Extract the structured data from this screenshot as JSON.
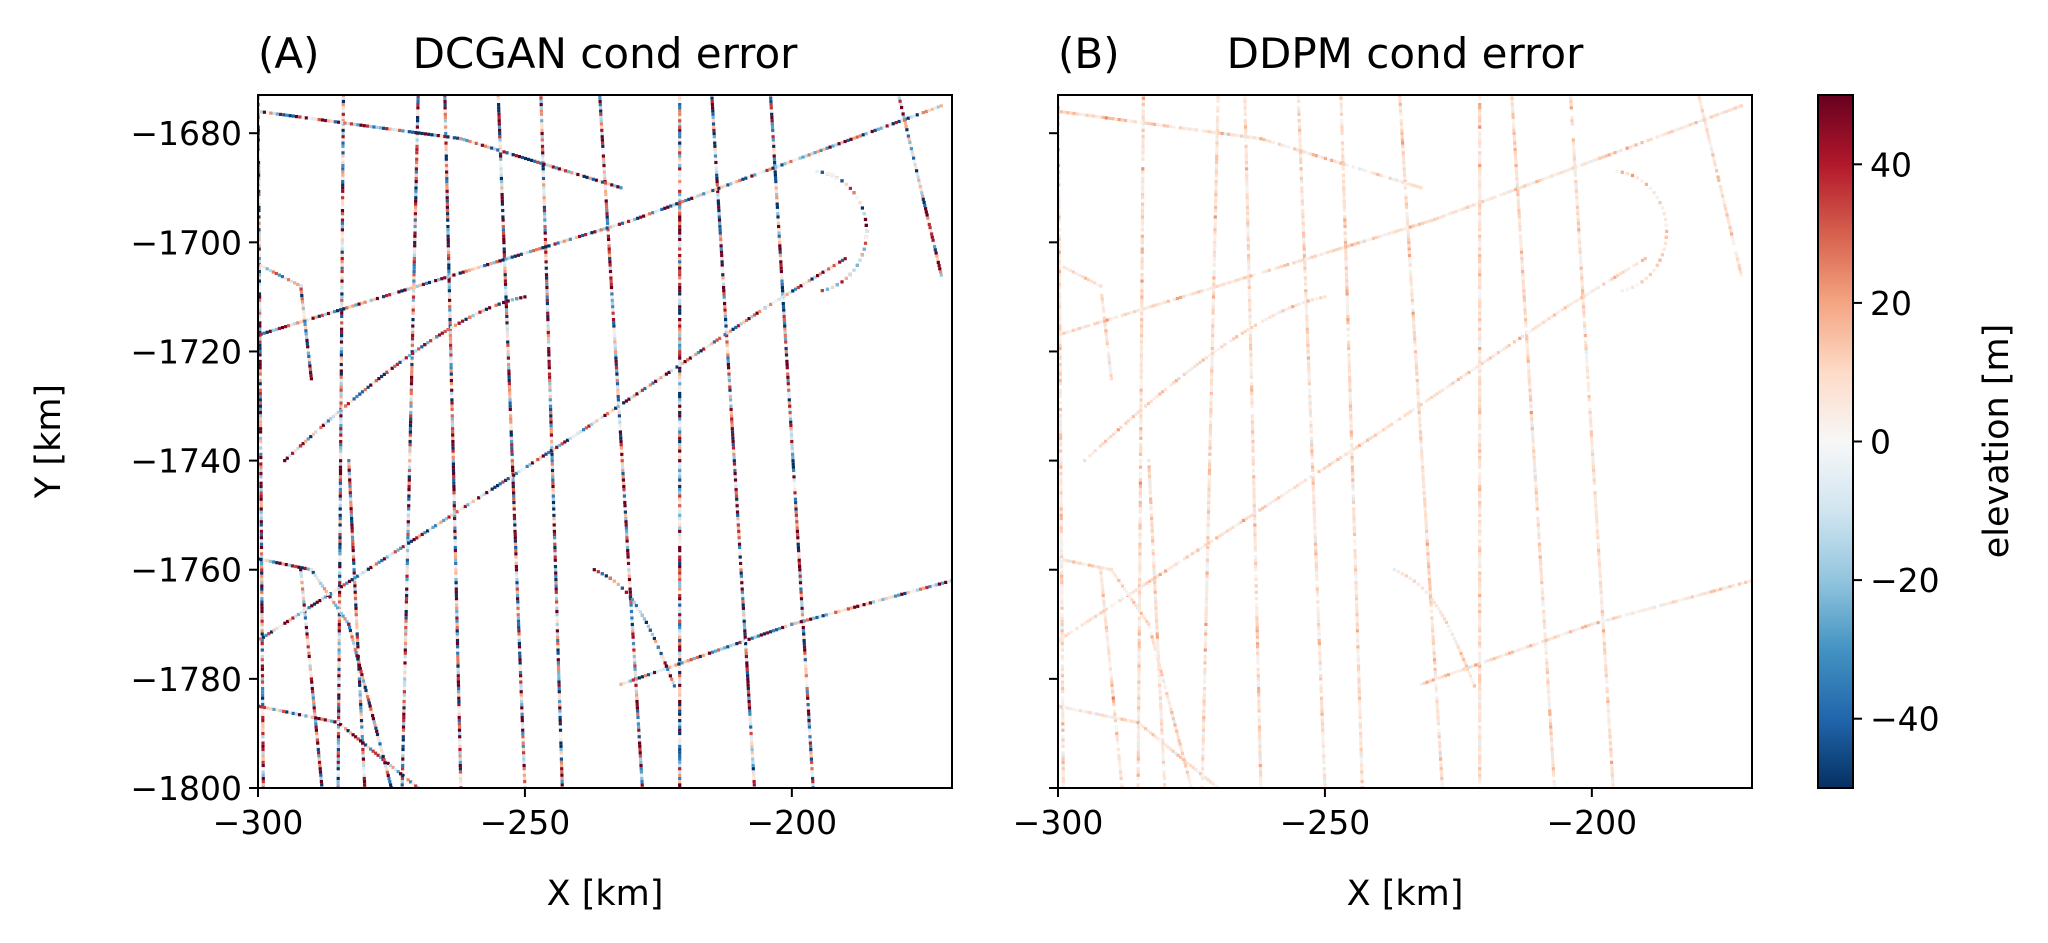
{
  "chart_data": [
    {
      "type": "heatmap",
      "panel_label": "(A)",
      "title": "DCGAN cond error",
      "xlabel": "X [km]",
      "ylabel": "Y [km]",
      "xlim": [
        -300,
        -170
      ],
      "ylim": [
        -1800,
        -1673
      ],
      "xticks": [
        -300,
        -250,
        -200
      ],
      "xtick_labels": [
        "−300",
        "−250",
        "−200"
      ],
      "yticks": [
        -1680,
        -1700,
        -1720,
        -1740,
        -1760,
        -1780,
        -1800
      ],
      "ytick_labels": [
        "−1680",
        "−1700",
        "−1720",
        "−1740",
        "−1760",
        "−1780",
        "−1800"
      ],
      "error_magnitude": "high",
      "colormap": "RdBu_r"
    },
    {
      "type": "heatmap",
      "panel_label": "(B)",
      "title": "DDPM cond error",
      "xlabel": "X [km]",
      "ylabel": "",
      "xlim": [
        -300,
        -170
      ],
      "ylim": [
        -1800,
        -1673
      ],
      "xticks": [
        -300,
        -250,
        -200
      ],
      "xtick_labels": [
        "−300",
        "−250",
        "−200"
      ],
      "yticks": [
        -1680,
        -1700,
        -1720,
        -1740,
        -1760,
        -1780,
        -1800
      ],
      "error_magnitude": "low",
      "colormap": "RdBu_r"
    }
  ],
  "colorbar": {
    "label": "elevation [m]",
    "range": [
      -50,
      50
    ],
    "ticks": [
      40,
      20,
      0,
      -20,
      -40
    ],
    "tick_labels": [
      "40",
      "20",
      "0",
      "−20",
      "−40"
    ],
    "colors": [
      "#67001f",
      "#b2182b",
      "#d6604d",
      "#f4a582",
      "#fddbc7",
      "#f7f7f7",
      "#d1e5f0",
      "#92c5de",
      "#4393c3",
      "#2166ac",
      "#053061"
    ]
  }
}
